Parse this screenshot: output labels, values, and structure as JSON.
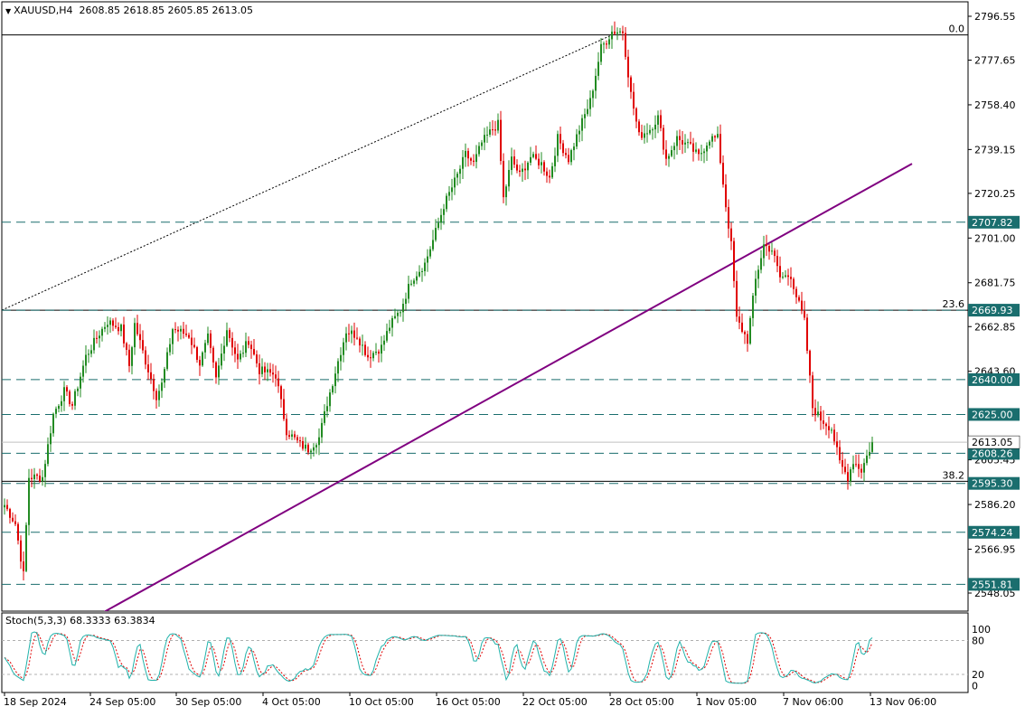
{
  "header": {
    "symbol": "XAUUSD,H4",
    "open": "2608.85",
    "high": "2618.85",
    "low": "2605.85",
    "close": "2613.05"
  },
  "indicator": {
    "name": "Stoch(5,3,3)",
    "main": "68.3333",
    "signal": "63.3834",
    "levels": [
      "100",
      "80",
      "20",
      "0"
    ]
  },
  "colors": {
    "bull": "#228b22",
    "bear": "#e00000",
    "level_line": "#1a6e6e",
    "tag_bg": "#1a6e6e",
    "trendline": "#800080",
    "stoch_main": "#20b2aa",
    "stoch_signal": "#e00000"
  },
  "chart_data": {
    "type": "candlestick",
    "price_axis": {
      "ticks": [
        2796.55,
        2777.65,
        2758.4,
        2739.15,
        2720.25,
        2701.0,
        2681.75,
        2662.85,
        2643.6,
        2605.45,
        2586.2,
        2566.95,
        2548.05
      ]
    },
    "time_axis": {
      "ticks": [
        "18 Sep 2024",
        "24 Sep 05:00",
        "30 Sep 05:00",
        "4 Oct 05:00",
        "10 Oct 05:00",
        "16 Oct 05:00",
        "22 Oct 05:00",
        "28 Oct 05:00",
        "1 Nov 05:00",
        "7 Nov 06:00",
        "13 Nov 06:00"
      ]
    },
    "levels": [
      2707.82,
      2669.93,
      2640.0,
      2625.0,
      2608.26,
      2595.3,
      2574.24,
      2551.81
    ],
    "current_price": 2613.05,
    "fibonacci": [
      {
        "label": "0.0",
        "price": 2788.5
      },
      {
        "label": "23.6",
        "price": 2669.93
      },
      {
        "label": "38.2",
        "price": 2596.2
      }
    ],
    "trendline": {
      "from": {
        "bar": 0,
        "price": 2533.4
      },
      "to": {
        "bar": 302,
        "price": 2733.0
      }
    },
    "waypoints": [
      [
        0,
        2586
      ],
      [
        4,
        2578
      ],
      [
        7,
        2556
      ],
      [
        9,
        2598
      ],
      [
        14,
        2598
      ],
      [
        18,
        2625
      ],
      [
        22,
        2635
      ],
      [
        25,
        2629
      ],
      [
        30,
        2650
      ],
      [
        35,
        2660
      ],
      [
        38,
        2665
      ],
      [
        43,
        2662
      ],
      [
        46,
        2646
      ],
      [
        48,
        2664
      ],
      [
        52,
        2648
      ],
      [
        56,
        2633
      ],
      [
        58,
        2638
      ],
      [
        62,
        2662
      ],
      [
        68,
        2659
      ],
      [
        72,
        2647
      ],
      [
        75,
        2658
      ],
      [
        78,
        2640
      ],
      [
        82,
        2662
      ],
      [
        86,
        2648
      ],
      [
        90,
        2657
      ],
      [
        94,
        2644
      ],
      [
        100,
        2642
      ],
      [
        104,
        2618
      ],
      [
        109,
        2612
      ],
      [
        112,
        2610
      ],
      [
        116,
        2615
      ],
      [
        119,
        2630
      ],
      [
        123,
        2648
      ],
      [
        126,
        2661
      ],
      [
        130,
        2659
      ],
      [
        134,
        2650
      ],
      [
        139,
        2654
      ],
      [
        142,
        2663
      ],
      [
        146,
        2670
      ],
      [
        150,
        2683
      ],
      [
        155,
        2690
      ],
      [
        158,
        2700
      ],
      [
        162,
        2715
      ],
      [
        167,
        2728
      ],
      [
        170,
        2737
      ],
      [
        173,
        2733
      ],
      [
        176,
        2742
      ],
      [
        180,
        2748
      ],
      [
        182,
        2750
      ],
      [
        184,
        2718
      ],
      [
        187,
        2735
      ],
      [
        190,
        2728
      ],
      [
        194,
        2736
      ],
      [
        198,
        2733
      ],
      [
        201,
        2727
      ],
      [
        204,
        2744
      ],
      [
        208,
        2735
      ],
      [
        212,
        2748
      ],
      [
        216,
        2760
      ],
      [
        220,
        2783
      ],
      [
        222,
        2786
      ],
      [
        224,
        2790
      ],
      [
        228,
        2790
      ],
      [
        231,
        2763
      ],
      [
        234,
        2745
      ],
      [
        238,
        2748
      ],
      [
        241,
        2753
      ],
      [
        244,
        2735
      ],
      [
        248,
        2744
      ],
      [
        253,
        2740
      ],
      [
        256,
        2736
      ],
      [
        260,
        2744
      ],
      [
        263,
        2744
      ],
      [
        266,
        2715
      ],
      [
        268,
        2698
      ],
      [
        270,
        2666
      ],
      [
        274,
        2657
      ],
      [
        277,
        2683
      ],
      [
        280,
        2698
      ],
      [
        283,
        2696
      ],
      [
        286,
        2684
      ],
      [
        290,
        2685
      ],
      [
        292,
        2676
      ],
      [
        295,
        2665
      ],
      [
        298,
        2628
      ],
      [
        301,
        2623
      ],
      [
        305,
        2619
      ],
      [
        308,
        2604
      ],
      [
        311,
        2598
      ],
      [
        313,
        2605
      ],
      [
        316,
        2601
      ],
      [
        320,
        2613
      ]
    ]
  }
}
